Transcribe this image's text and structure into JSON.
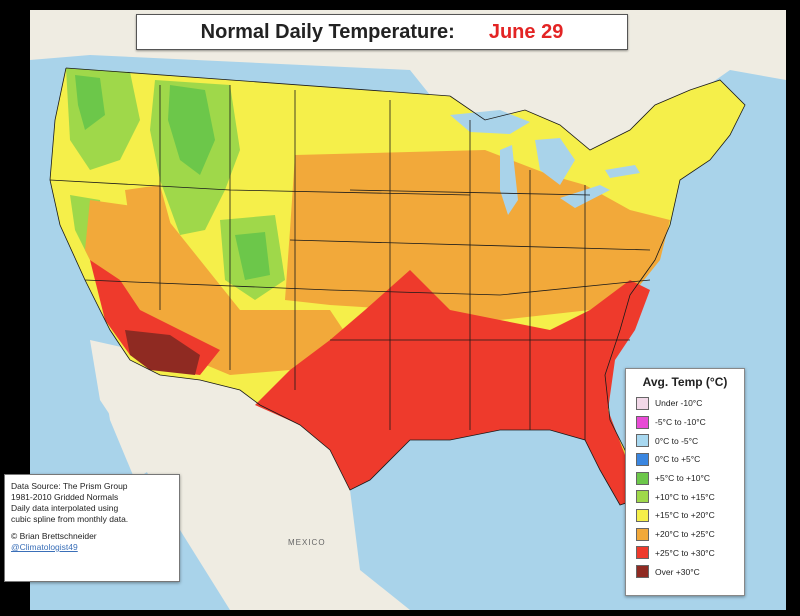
{
  "title": {
    "main": "Normal Daily Temperature:",
    "date": "June 29"
  },
  "legend": {
    "title": "Avg. Temp (°C)",
    "items": [
      {
        "label": "Under -10°C",
        "color": "#f2d8e8"
      },
      {
        "label": "-5°C to -10°C",
        "color": "#e84bd5"
      },
      {
        "label": "0°C to -5°C",
        "color": "#a8d8f0"
      },
      {
        "label": "0°C to +5°C",
        "color": "#3a86e0"
      },
      {
        "label": "+5°C to +10°C",
        "color": "#6cc74a"
      },
      {
        "label": "+10°C to +15°C",
        "color": "#9fd84a"
      },
      {
        "label": "+15°C to +20°C",
        "color": "#f5ef4a"
      },
      {
        "label": "+20°C to +25°C",
        "color": "#f2a93a"
      },
      {
        "label": "+25°C to +30°C",
        "color": "#ee3a2c"
      },
      {
        "label": "Over +30°C",
        "color": "#8f2a22"
      }
    ]
  },
  "source": {
    "lines": [
      "Data Source: The Prism Group",
      "1981-2010 Gridded Normals",
      "Daily data interpolated using",
      "cubic spline from monthly data."
    ],
    "author": "© Brian Brettschneider",
    "handle": "@Climatologist49"
  },
  "geo_labels": {
    "mexico": "MEXICO"
  },
  "colors": {
    "ocean": "#a9d3ea",
    "land": "#efece2",
    "border": "#1a1a1a"
  }
}
